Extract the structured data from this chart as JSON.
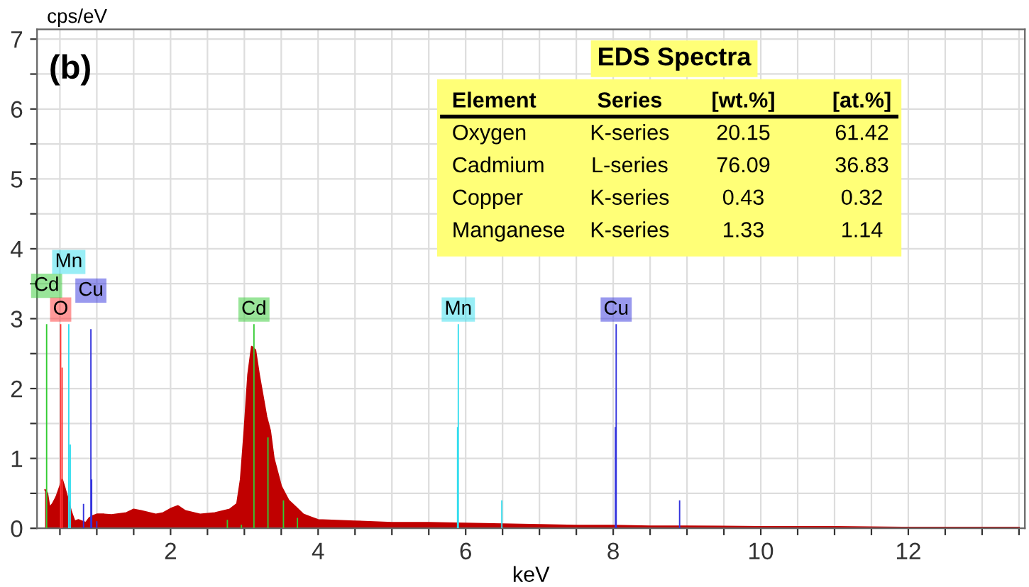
{
  "chart_data": {
    "type": "area",
    "xlabel": "keV",
    "ylabel": "cps/eV",
    "xlim": [
      0.19,
      13.58
    ],
    "ylim": [
      0,
      7.14
    ],
    "xticks": [
      {
        "value": 0.5,
        "label": null
      },
      {
        "value": 1,
        "label": null
      },
      {
        "value": 1.5,
        "label": null
      },
      2,
      {
        "value": 2.5,
        "label": null
      },
      {
        "value": 3,
        "label": null
      },
      {
        "value": 3.5,
        "label": null
      },
      4,
      {
        "value": 4.5,
        "label": null
      },
      {
        "value": 5,
        "label": null
      },
      {
        "value": 5.5,
        "label": null
      },
      6,
      {
        "value": 6.5,
        "label": null
      },
      {
        "value": 7,
        "label": null
      },
      {
        "value": 7.5,
        "label": null
      },
      8,
      {
        "value": 8.5,
        "label": null
      },
      {
        "value": 9,
        "label": null
      },
      {
        "value": 9.5,
        "label": null
      },
      10,
      {
        "value": 10.5,
        "label": null
      },
      {
        "value": 11,
        "label": null
      },
      {
        "value": 11.5,
        "label": null
      },
      12,
      {
        "value": 12.5,
        "label": null
      },
      {
        "value": 13,
        "label": null
      },
      {
        "value": 13.5,
        "label": null
      }
    ],
    "yticks": [
      0,
      {
        "value": 0.5,
        "label": null
      },
      1,
      {
        "value": 1.5,
        "label": null
      },
      2,
      {
        "value": 2.5,
        "label": null
      },
      3,
      {
        "value": 3.5,
        "label": null
      },
      4,
      {
        "value": 4.5,
        "label": null
      },
      5,
      {
        "value": 5.5,
        "label": null
      },
      6,
      {
        "value": 6.5,
        "label": null
      },
      7
    ],
    "grid": true,
    "series": [
      {
        "color": "#c00000",
        "x": [
          0.3,
          0.33,
          0.36,
          0.4,
          0.45,
          0.5,
          0.53,
          0.56,
          0.6,
          0.65,
          0.7,
          0.75,
          0.8,
          0.85,
          0.9,
          0.95,
          1.0,
          1.1,
          1.2,
          1.4,
          1.5,
          1.6,
          1.8,
          1.9,
          2.0,
          2.1,
          2.2,
          2.4,
          2.6,
          2.8,
          2.9,
          2.95,
          3.0,
          3.05,
          3.1,
          3.15,
          3.2,
          3.25,
          3.3,
          3.35,
          3.4,
          3.45,
          3.5,
          3.6,
          3.7,
          3.8,
          3.9,
          4.0,
          4.5,
          5.0,
          5.5,
          6.0,
          6.5,
          7.0,
          7.5,
          8.0,
          8.5,
          9.0,
          10.0,
          11.0,
          12.0,
          13.0,
          13.5
        ],
        "values": [
          0.55,
          0.5,
          0.3,
          0.35,
          0.45,
          0.6,
          0.7,
          0.6,
          0.45,
          0.25,
          0.1,
          0.12,
          0.1,
          0.08,
          0.15,
          0.18,
          0.2,
          0.2,
          0.19,
          0.22,
          0.27,
          0.25,
          0.2,
          0.22,
          0.28,
          0.32,
          0.25,
          0.2,
          0.22,
          0.27,
          0.35,
          0.7,
          1.4,
          2.2,
          2.6,
          2.55,
          2.2,
          1.9,
          1.6,
          1.4,
          1.0,
          0.8,
          0.6,
          0.4,
          0.3,
          0.2,
          0.16,
          0.12,
          0.1,
          0.08,
          0.08,
          0.07,
          0.06,
          0.05,
          0.04,
          0.04,
          0.03,
          0.03,
          0.02,
          0.02,
          0.01,
          0.01,
          0.01
        ]
      },
      {
        "type": "bar",
        "color": "#33cc33",
        "x": [
          0.32,
          2.77,
          2.96,
          3.13,
          3.32,
          3.53,
          3.72
        ],
        "values": [
          2.92,
          0.12,
          0.05,
          2.92,
          1.3,
          0.4,
          0.15
        ]
      },
      {
        "type": "bar",
        "color": "#ff3333",
        "x": [
          0.51,
          0.53
        ],
        "values": [
          2.92,
          2.3
        ]
      },
      {
        "type": "bar",
        "color": "#33ddee",
        "x": [
          0.62,
          0.64,
          5.89,
          5.9,
          6.49
        ],
        "values": [
          2.92,
          1.2,
          1.45,
          2.92,
          0.4
        ]
      },
      {
        "type": "bar",
        "color": "#3333dd",
        "x": [
          0.82,
          0.92,
          0.93,
          1.0,
          8.03,
          8.04,
          8.9
        ],
        "values": [
          0.35,
          2.85,
          0.7,
          0.1,
          1.45,
          2.92,
          0.4
        ]
      }
    ],
    "annotations": [
      {
        "text": "O",
        "x": 0.51,
        "y": 2.92
      },
      {
        "text": "Cd",
        "x": 0.32,
        "y": 2.92
      },
      {
        "text": "Cu",
        "x": 0.92,
        "y": 2.85
      },
      {
        "text": "Mn",
        "x": 0.62,
        "y": 2.92
      },
      {
        "text": "Cd",
        "x": 3.13,
        "y": 2.92
      },
      {
        "text": "Mn",
        "x": 5.9,
        "y": 2.92
      },
      {
        "text": "Cu",
        "x": 8.04,
        "y": 2.92
      },
      "(b)",
      "EDS Spectra",
      "Element",
      "Series",
      "[wt.%]",
      "[at.%]",
      "Oxygen",
      "K-series",
      "20.15",
      "61.42",
      "Cadmium",
      "L-series",
      "76.09",
      "36.83",
      "Copper",
      "K-series",
      "0.43",
      "0.32",
      "Manganese",
      "K-series",
      "1.33",
      "1.14"
    ]
  }
}
